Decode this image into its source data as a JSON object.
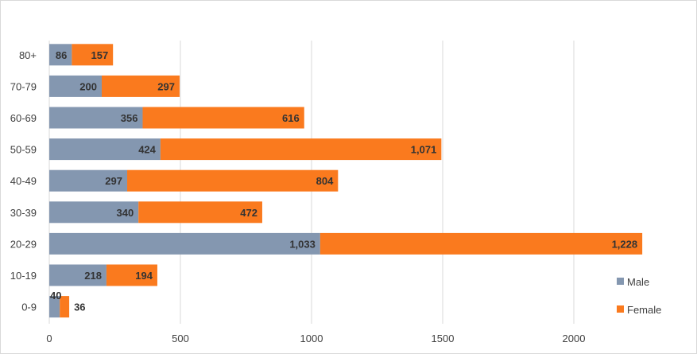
{
  "chart_data": {
    "type": "bar",
    "orientation": "horizontal",
    "stacked": true,
    "categories": [
      "80+",
      "70-79",
      "60-69",
      "50-59",
      "40-49",
      "30-39",
      "20-29",
      "10-19",
      "0-9"
    ],
    "series": [
      {
        "name": "Male",
        "color": "#8497b0",
        "values": [
          86,
          200,
          356,
          424,
          297,
          340,
          1033,
          218,
          40
        ],
        "labels": [
          "86",
          "200",
          "356",
          "424",
          "297",
          "340",
          "1,033",
          "218",
          "40"
        ]
      },
      {
        "name": "Female",
        "color": "#fa7a1e",
        "values": [
          157,
          297,
          616,
          1071,
          804,
          472,
          1228,
          194,
          36
        ],
        "labels": [
          "157",
          "297",
          "616",
          "1,071",
          "804",
          "472",
          "1,228",
          "194",
          "36"
        ]
      }
    ],
    "xlim": [
      0,
      2500
    ],
    "xticks": [
      0,
      500,
      1000,
      1500,
      2000
    ],
    "xtick_labels": [
      "0",
      "500",
      "1000",
      "1500",
      "2000"
    ],
    "grid": "vertical",
    "legend_position": "right"
  }
}
